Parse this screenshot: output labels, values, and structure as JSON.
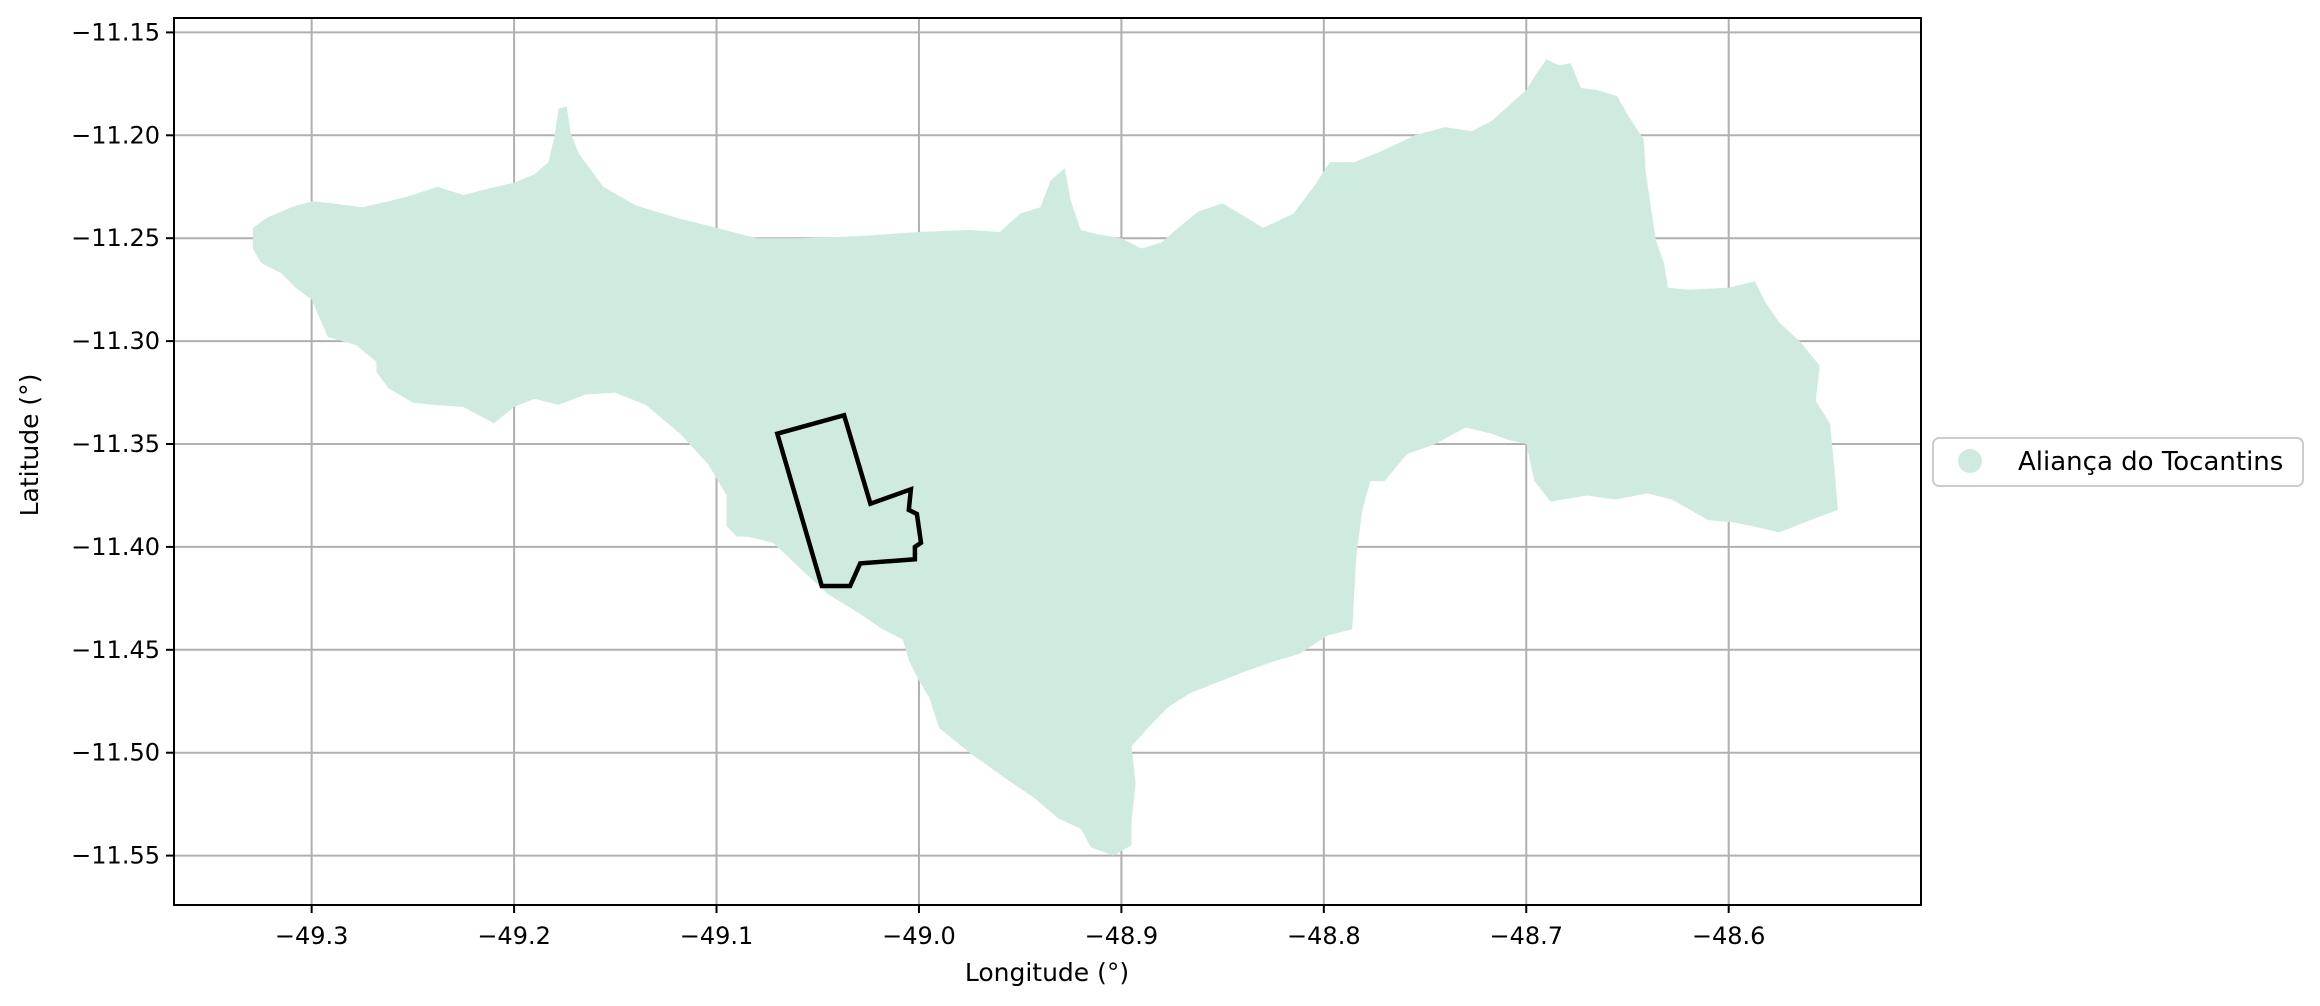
{
  "chart_data": {
    "type": "map",
    "xlabel": "Longitude (°)",
    "ylabel": "Latitude (°)",
    "xlim": [
      -49.368,
      -48.505
    ],
    "ylim": [
      -11.574,
      -11.143
    ],
    "grid": true,
    "xticks": [
      -49.3,
      -49.2,
      -49.1,
      -49.0,
      -48.9,
      -48.8,
      -48.7,
      -48.6
    ],
    "xtick_labels": [
      "−49.3",
      "−49.2",
      "−49.1",
      "−49.0",
      "−48.9",
      "−48.8",
      "−48.7",
      "−48.6"
    ],
    "yticks": [
      -11.15,
      -11.2,
      -11.25,
      -11.3,
      -11.35,
      -11.4,
      -11.45,
      -11.5,
      -11.55
    ],
    "ytick_labels": [
      "−11.15",
      "−11.20",
      "−11.25",
      "−11.30",
      "−11.35",
      "−11.40",
      "−11.45",
      "−11.50",
      "−11.55"
    ],
    "legend": {
      "placement": "center-right, outside axes",
      "entries": [
        {
          "label": "Aliança do Tocantins",
          "color": "#cfebdf"
        }
      ]
    },
    "region": {
      "name": "Aliança do Tocantins",
      "fill": "#cfebdf",
      "boundary": [
        [
          -49.329,
          -11.245
        ],
        [
          -49.322,
          -11.24
        ],
        [
          -49.31,
          -11.235
        ],
        [
          -49.3,
          -11.232
        ],
        [
          -49.29,
          -11.233
        ],
        [
          -49.275,
          -11.235
        ],
        [
          -49.262,
          -11.232
        ],
        [
          -49.25,
          -11.229
        ],
        [
          -49.238,
          -11.225
        ],
        [
          -49.225,
          -11.229
        ],
        [
          -49.213,
          -11.226
        ],
        [
          -49.2,
          -11.223
        ],
        [
          -49.19,
          -11.219
        ],
        [
          -49.183,
          -11.213
        ],
        [
          -49.18,
          -11.2
        ],
        [
          -49.178,
          -11.187
        ],
        [
          -49.174,
          -11.186
        ],
        [
          -49.172,
          -11.199
        ],
        [
          -49.168,
          -11.209
        ],
        [
          -49.156,
          -11.225
        ],
        [
          -49.14,
          -11.234
        ],
        [
          -49.12,
          -11.24
        ],
        [
          -49.1,
          -11.245
        ],
        [
          -49.08,
          -11.25
        ],
        [
          -49.06,
          -11.25
        ],
        [
          -49.03,
          -11.249
        ],
        [
          -49.0,
          -11.247
        ],
        [
          -48.975,
          -11.246
        ],
        [
          -48.96,
          -11.247
        ],
        [
          -48.95,
          -11.238
        ],
        [
          -48.94,
          -11.235
        ],
        [
          -48.935,
          -11.222
        ],
        [
          -48.928,
          -11.216
        ],
        [
          -48.925,
          -11.232
        ],
        [
          -48.92,
          -11.246
        ],
        [
          -48.912,
          -11.248
        ],
        [
          -48.9,
          -11.25
        ],
        [
          -48.89,
          -11.255
        ],
        [
          -48.88,
          -11.252
        ],
        [
          -48.872,
          -11.245
        ],
        [
          -48.862,
          -11.237
        ],
        [
          -48.85,
          -11.233
        ],
        [
          -48.83,
          -11.245
        ],
        [
          -48.815,
          -11.238
        ],
        [
          -48.805,
          -11.225
        ],
        [
          -48.797,
          -11.213
        ],
        [
          -48.785,
          -11.213
        ],
        [
          -48.77,
          -11.207
        ],
        [
          -48.755,
          -11.2
        ],
        [
          -48.74,
          -11.196
        ],
        [
          -48.727,
          -11.198
        ],
        [
          -48.717,
          -11.193
        ],
        [
          -48.708,
          -11.185
        ],
        [
          -48.7,
          -11.178
        ],
        [
          -48.695,
          -11.17
        ],
        [
          -48.69,
          -11.163
        ],
        [
          -48.684,
          -11.166
        ],
        [
          -48.678,
          -11.165
        ],
        [
          -48.673,
          -11.177
        ],
        [
          -48.665,
          -11.178
        ],
        [
          -48.655,
          -11.181
        ],
        [
          -48.65,
          -11.19
        ],
        [
          -48.642,
          -11.202
        ],
        [
          -48.641,
          -11.218
        ],
        [
          -48.639,
          -11.231
        ],
        [
          -48.636,
          -11.251
        ],
        [
          -48.632,
          -11.262
        ],
        [
          -48.63,
          -11.274
        ],
        [
          -48.62,
          -11.275
        ],
        [
          -48.6,
          -11.274
        ],
        [
          -48.587,
          -11.271
        ],
        [
          -48.582,
          -11.281
        ],
        [
          -48.575,
          -11.291
        ],
        [
          -48.565,
          -11.3
        ],
        [
          -48.555,
          -11.312
        ],
        [
          -48.557,
          -11.329
        ],
        [
          -48.55,
          -11.34
        ],
        [
          -48.548,
          -11.36
        ],
        [
          -48.546,
          -11.382
        ],
        [
          -48.56,
          -11.387
        ],
        [
          -48.575,
          -11.393
        ],
        [
          -48.588,
          -11.39
        ],
        [
          -48.598,
          -11.388
        ],
        [
          -48.61,
          -11.387
        ],
        [
          -48.628,
          -11.377
        ],
        [
          -48.64,
          -11.374
        ],
        [
          -48.656,
          -11.377
        ],
        [
          -48.67,
          -11.375
        ],
        [
          -48.688,
          -11.378
        ],
        [
          -48.696,
          -11.368
        ],
        [
          -48.7,
          -11.35
        ],
        [
          -48.709,
          -11.348
        ],
        [
          -48.717,
          -11.345
        ],
        [
          -48.73,
          -11.342
        ],
        [
          -48.745,
          -11.35
        ],
        [
          -48.759,
          -11.355
        ],
        [
          -48.77,
          -11.368
        ],
        [
          -48.777,
          -11.368
        ],
        [
          -48.781,
          -11.382
        ],
        [
          -48.784,
          -11.405
        ],
        [
          -48.786,
          -11.44
        ],
        [
          -48.798,
          -11.443
        ],
        [
          -48.812,
          -11.452
        ],
        [
          -48.826,
          -11.456
        ],
        [
          -48.84,
          -11.461
        ],
        [
          -48.853,
          -11.466
        ],
        [
          -48.866,
          -11.471
        ],
        [
          -48.877,
          -11.478
        ],
        [
          -48.886,
          -11.487
        ],
        [
          -48.895,
          -11.497
        ],
        [
          -48.893,
          -11.515
        ],
        [
          -48.895,
          -11.533
        ],
        [
          -48.895,
          -11.545
        ],
        [
          -48.904,
          -11.55
        ],
        [
          -48.915,
          -11.546
        ],
        [
          -48.92,
          -11.537
        ],
        [
          -48.931,
          -11.532
        ],
        [
          -48.943,
          -11.522
        ],
        [
          -48.958,
          -11.512
        ],
        [
          -48.975,
          -11.5
        ],
        [
          -48.99,
          -11.488
        ],
        [
          -48.995,
          -11.473
        ],
        [
          -49.0,
          -11.465
        ],
        [
          -49.005,
          -11.455
        ],
        [
          -49.008,
          -11.445
        ],
        [
          -49.018,
          -11.44
        ],
        [
          -49.03,
          -11.432
        ],
        [
          -49.045,
          -11.423
        ],
        [
          -49.057,
          -11.412
        ],
        [
          -49.072,
          -11.398
        ],
        [
          -49.085,
          -11.395
        ],
        [
          -49.09,
          -11.395
        ],
        [
          -49.095,
          -11.39
        ],
        [
          -49.095,
          -11.375
        ],
        [
          -49.104,
          -11.36
        ],
        [
          -49.118,
          -11.345
        ],
        [
          -49.135,
          -11.331
        ],
        [
          -49.15,
          -11.325
        ],
        [
          -49.165,
          -11.326
        ],
        [
          -49.178,
          -11.331
        ],
        [
          -49.19,
          -11.328
        ],
        [
          -49.2,
          -11.332
        ],
        [
          -49.21,
          -11.34
        ],
        [
          -49.225,
          -11.332
        ],
        [
          -49.24,
          -11.331
        ],
        [
          -49.25,
          -11.33
        ],
        [
          -49.262,
          -11.323
        ],
        [
          -49.268,
          -11.315
        ],
        [
          -49.268,
          -11.31
        ],
        [
          -49.278,
          -11.302
        ],
        [
          -49.292,
          -11.298
        ],
        [
          -49.3,
          -11.28
        ],
        [
          -49.308,
          -11.274
        ],
        [
          -49.315,
          -11.267
        ],
        [
          -49.325,
          -11.262
        ],
        [
          -49.329,
          -11.255
        ]
      ]
    },
    "outline": {
      "stroke": "#000000",
      "boundary": [
        [
          -49.07,
          -11.345
        ],
        [
          -49.037,
          -11.336
        ],
        [
          -49.024,
          -11.379
        ],
        [
          -49.004,
          -11.372
        ],
        [
          -49.005,
          -11.382
        ],
        [
          -49.001,
          -11.384
        ],
        [
          -48.999,
          -11.398
        ],
        [
          -49.002,
          -11.4
        ],
        [
          -49.002,
          -11.406
        ],
        [
          -49.029,
          -11.408
        ],
        [
          -49.034,
          -11.419
        ],
        [
          -49.048,
          -11.419
        ],
        [
          -49.07,
          -11.345
        ]
      ]
    }
  }
}
